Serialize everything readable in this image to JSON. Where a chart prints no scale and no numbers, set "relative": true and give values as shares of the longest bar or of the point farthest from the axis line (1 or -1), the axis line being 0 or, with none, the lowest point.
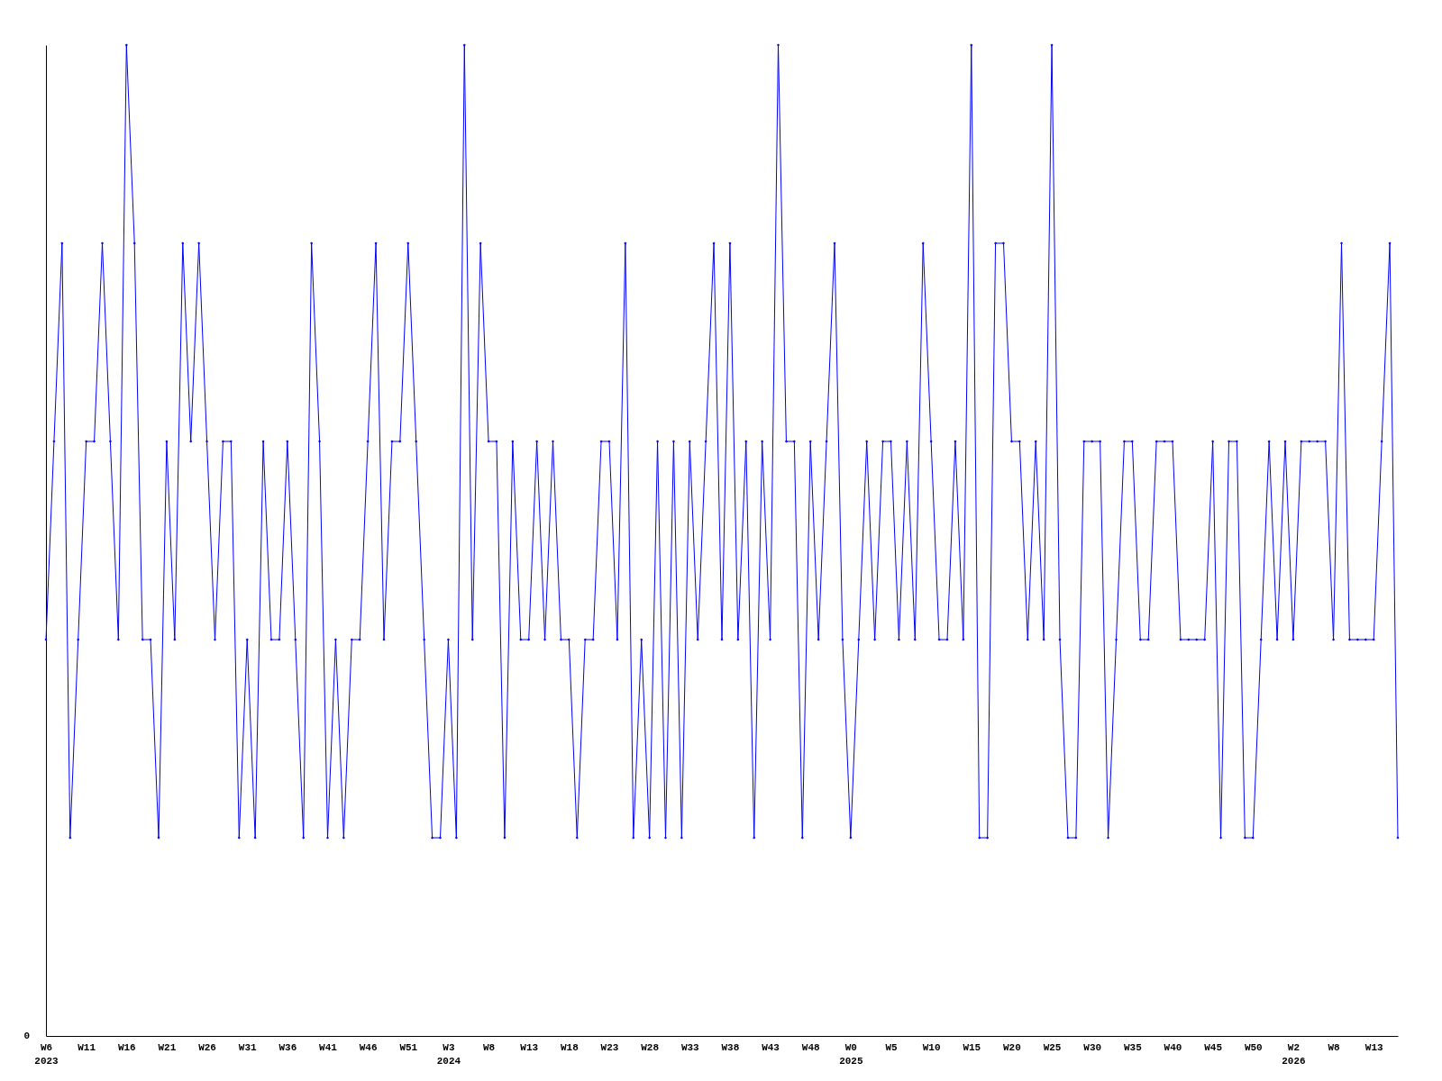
{
  "chart_data": {
    "type": "line",
    "relative": true,
    "marker": "diamond",
    "line_style": "solid",
    "grid": false,
    "categories": [
      "W6\n2023",
      null,
      null,
      null,
      null,
      "W11",
      null,
      null,
      null,
      null,
      "W16",
      null,
      null,
      null,
      null,
      "W21",
      null,
      null,
      null,
      null,
      "W26",
      null,
      null,
      null,
      null,
      "W31",
      null,
      null,
      null,
      null,
      "W36",
      null,
      null,
      null,
      null,
      "W41",
      null,
      null,
      null,
      null,
      "W46",
      null,
      null,
      null,
      null,
      "W51",
      null,
      null,
      null,
      null,
      "W3\n2024",
      null,
      null,
      null,
      null,
      "W8",
      null,
      null,
      null,
      null,
      "W13",
      null,
      null,
      null,
      null,
      "W18",
      null,
      null,
      null,
      null,
      "W23",
      null,
      null,
      null,
      null,
      "W28",
      null,
      null,
      null,
      null,
      "W33",
      null,
      null,
      null,
      null,
      "W38",
      null,
      null,
      null,
      null,
      "W43",
      null,
      null,
      null,
      null,
      "W48",
      null,
      null,
      null,
      null,
      "W0\n2025",
      null,
      null,
      null,
      null,
      "W5",
      null,
      null,
      null,
      null,
      "W10",
      null,
      null,
      null,
      null,
      "W15",
      null,
      null,
      null,
      null,
      "W20",
      null,
      null,
      null,
      null,
      "W25",
      null,
      null,
      null,
      null,
      "W30",
      null,
      null,
      null,
      null,
      "W35",
      null,
      null,
      null,
      null,
      "W40",
      null,
      null,
      null,
      null,
      "W45",
      null,
      null,
      null,
      null,
      "W50",
      null,
      null,
      null,
      null,
      "W2\n2026",
      null,
      null,
      null,
      null,
      "W8",
      null,
      null,
      null,
      null,
      "W13",
      null,
      null,
      null
    ],
    "series": [
      {
        "color": "#0000ff",
        "values": [
          0.4,
          0.6,
          0.8,
          0.2,
          0.4,
          0.6,
          0.6,
          0.8,
          0.6,
          0.4,
          1,
          0.8,
          0.4,
          0.4,
          0.2,
          0.6,
          0.4,
          0.8,
          0.6,
          0.8,
          0.6,
          0.4,
          0.6,
          0.6,
          0.2,
          0.4,
          0.2,
          0.6,
          0.4,
          0.4,
          0.6,
          0.4,
          0.2,
          0.8,
          0.6,
          0.2,
          0.4,
          0.2,
          0.4,
          0.4,
          0.6,
          0.8,
          0.4,
          0.6,
          0.6,
          0.8,
          0.6,
          0.4,
          0.2,
          0.2,
          0.4,
          0.2,
          1,
          0.4,
          0.8,
          0.6,
          0.6,
          0.2,
          0.6,
          0.4,
          0.4,
          0.6,
          0.4,
          0.6,
          0.4,
          0.4,
          0.2,
          0.4,
          0.4,
          0.6,
          0.6,
          0.4,
          0.8,
          0.2,
          0.4,
          0.2,
          0.6,
          0.2,
          0.6,
          0.2,
          0.6,
          0.4,
          0.6,
          0.8,
          0.4,
          0.8,
          0.4,
          0.6,
          0.2,
          0.6,
          0.4,
          1,
          0.6,
          0.6,
          0.2,
          0.6,
          0.4,
          0.6,
          0.8,
          0.4,
          0.2,
          0.4,
          0.6,
          0.4,
          0.6,
          0.6,
          0.4,
          0.6,
          0.4,
          0.8,
          0.6,
          0.4,
          0.4,
          0.6,
          0.4,
          1,
          0.2,
          0.2,
          0.8,
          0.8,
          0.6,
          0.6,
          0.4,
          0.6,
          0.4,
          1,
          0.4,
          0.2,
          0.2,
          0.6,
          0.6,
          0.6,
          0.2,
          0.4,
          0.6,
          0.6,
          0.4,
          0.4,
          0.6,
          0.6,
          0.6,
          0.4,
          0.4,
          0.4,
          0.4,
          0.6,
          0.2,
          0.6,
          0.6,
          0.2,
          0.2,
          0.4,
          0.6,
          0.4,
          0.6,
          0.4,
          0.6,
          0.6,
          0.6,
          0.6,
          0.4,
          0.8,
          0.4,
          0.4,
          0.4,
          0.4,
          0.6,
          0.8,
          0.2
        ]
      }
    ],
    "annotations": [
      "0"
    ]
  }
}
